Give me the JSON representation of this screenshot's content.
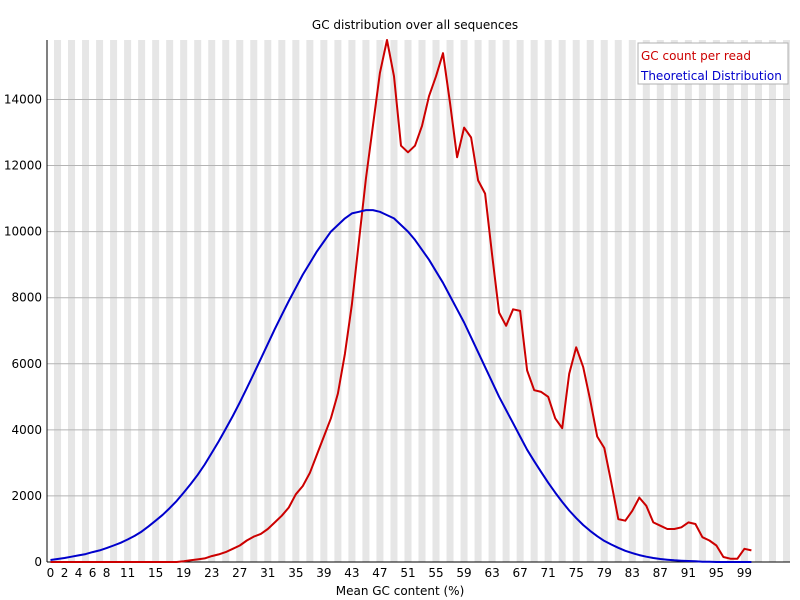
{
  "chart_data": {
    "type": "line",
    "title": "GC distribution over all sequences",
    "xlabel": "Mean GC content (%)",
    "ylabel": "",
    "x_range": [
      0,
      100
    ],
    "ylim": [
      0,
      15800
    ],
    "grid": true,
    "legend_position": "top-right",
    "y_ticks": [
      0,
      2000,
      4000,
      6000,
      8000,
      10000,
      12000,
      14000
    ],
    "x_tick_labels": [
      "0",
      "2",
      "4",
      "6",
      "8",
      "11",
      "15",
      "19",
      "23",
      "27",
      "31",
      "35",
      "39",
      "43",
      "47",
      "51",
      "55",
      "59",
      "63",
      "67",
      "71",
      "75",
      "79",
      "83",
      "87",
      "91",
      "95",
      "99"
    ],
    "x": [
      0,
      1,
      2,
      3,
      4,
      5,
      6,
      7,
      8,
      9,
      10,
      11,
      12,
      13,
      14,
      15,
      16,
      17,
      18,
      19,
      20,
      21,
      22,
      23,
      24,
      25,
      26,
      27,
      28,
      29,
      30,
      31,
      32,
      33,
      34,
      35,
      36,
      37,
      38,
      39,
      40,
      41,
      42,
      43,
      44,
      45,
      46,
      47,
      48,
      49,
      50,
      51,
      52,
      53,
      54,
      55,
      56,
      57,
      58,
      59,
      60,
      61,
      62,
      63,
      64,
      65,
      66,
      67,
      68,
      69,
      70,
      71,
      72,
      73,
      74,
      75,
      76,
      77,
      78,
      79,
      80,
      81,
      82,
      83,
      84,
      85,
      86,
      87,
      88,
      89,
      90,
      91,
      92,
      93,
      94,
      95,
      96,
      97,
      98,
      99,
      100
    ],
    "series": [
      {
        "name": "GC count per read",
        "color": "#cc0000",
        "values": [
          0,
          0,
          0,
          0,
          0,
          0,
          0,
          0,
          0,
          0,
          0,
          0,
          0,
          0,
          0,
          0,
          0,
          0,
          0,
          20,
          50,
          80,
          110,
          180,
          230,
          300,
          400,
          500,
          650,
          770,
          850,
          1000,
          1200,
          1400,
          1650,
          2050,
          2300,
          2700,
          3250,
          3800,
          4350,
          5100,
          6300,
          7800,
          9700,
          11600,
          13200,
          14800,
          15800,
          14700,
          12600,
          12400,
          12600,
          13200,
          14100,
          14700,
          15400,
          13900,
          12250,
          13150,
          12850,
          11550,
          11150,
          9300,
          7550,
          7150,
          7650,
          7600,
          5800,
          5200,
          5150,
          5000,
          4350,
          4050,
          5700,
          6500,
          5900,
          4900,
          3800,
          3450,
          2400,
          1300,
          1250,
          1550,
          1950,
          1700,
          1200,
          1100,
          1000,
          1000,
          1050,
          1200,
          1150,
          750,
          650,
          500,
          150,
          100,
          100,
          400,
          350
        ],
        "color_index": 0
      },
      {
        "name": "Theoretical Distribution",
        "color": "#0000cc",
        "values": [
          60,
          90,
          120,
          160,
          200,
          240,
          300,
          350,
          420,
          500,
          580,
          680,
          790,
          920,
          1080,
          1250,
          1430,
          1630,
          1850,
          2100,
          2360,
          2640,
          2950,
          3300,
          3650,
          4030,
          4420,
          4830,
          5260,
          5700,
          6150,
          6600,
          7050,
          7480,
          7900,
          8300,
          8700,
          9050,
          9400,
          9700,
          10000,
          10200,
          10400,
          10550,
          10600,
          10650,
          10650,
          10600,
          10500,
          10400,
          10200,
          10000,
          9750,
          9450,
          9150,
          8800,
          8450,
          8050,
          7650,
          7250,
          6800,
          6350,
          5900,
          5450,
          5000,
          4600,
          4200,
          3800,
          3400,
          3050,
          2720,
          2400,
          2100,
          1820,
          1560,
          1330,
          1120,
          940,
          780,
          640,
          530,
          430,
          340,
          270,
          210,
          160,
          120,
          90,
          70,
          50,
          40,
          30,
          20,
          10,
          5,
          0,
          0,
          0,
          0,
          0,
          0
        ]
      }
    ]
  }
}
